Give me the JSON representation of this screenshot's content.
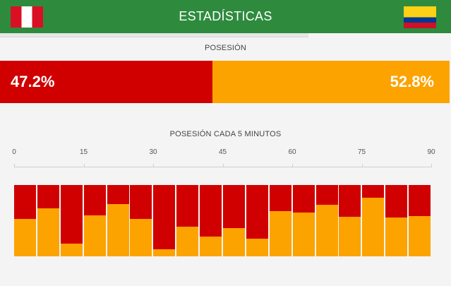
{
  "header": {
    "title": "ESTADÍSTICAS",
    "home_flag": "flag-peru",
    "away_flag": "flag-colombia"
  },
  "possession": {
    "label": "POSESIÓN",
    "home_value": 47.2,
    "away_value": 52.8,
    "home_text": "47.2%",
    "away_text": "52.8%"
  },
  "colors": {
    "header_green": "#2e8b3e",
    "home_red": "#d10000",
    "away_orange": "#fca300"
  },
  "chart_data": {
    "type": "bar",
    "title": "POSESIÓN CADA 5 MINUTOS",
    "x_ticks": [
      "0",
      "15",
      "30",
      "45",
      "60",
      "75",
      "90"
    ],
    "xlim": [
      0,
      90
    ],
    "categories": [
      "0-5",
      "5-10",
      "10-15",
      "15-20",
      "20-25",
      "25-30",
      "30-35",
      "35-40",
      "40-45",
      "45-50",
      "50-55",
      "55-60",
      "60-65",
      "65-70",
      "70-75",
      "75-80",
      "80-85",
      "85-90"
    ],
    "series": [
      {
        "values": [
          48,
          33,
          82,
          43,
          27,
          48,
          90,
          58,
          72,
          60,
          75,
          37,
          39,
          28,
          45,
          18,
          46,
          44
        ]
      },
      {
        "values": [
          52,
          67,
          18,
          57,
          73,
          52,
          10,
          42,
          28,
          40,
          25,
          63,
          61,
          72,
          55,
          82,
          54,
          56
        ]
      }
    ],
    "stacked": true,
    "ylim": [
      0,
      100
    ]
  }
}
